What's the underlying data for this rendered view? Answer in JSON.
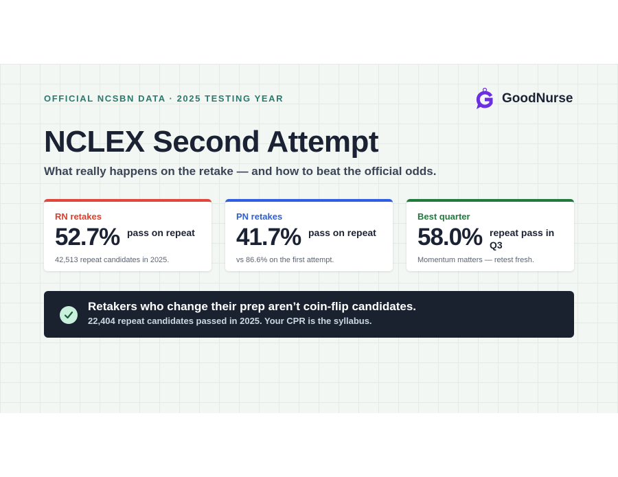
{
  "header": {
    "kicker": "OFFICIAL NCSBN DATA · 2025 TESTING YEAR",
    "brand": "GoodNurse"
  },
  "title": "NCLEX Second Attempt",
  "subtitle": "What really happens on the retake — and how to beat the official odds.",
  "cards": [
    {
      "label": "RN retakes",
      "value": "52.7%",
      "unit": "pass on repeat",
      "note": "42,513 repeat candidates in 2025."
    },
    {
      "label": "PN retakes",
      "value": "41.7%",
      "unit": "pass on repeat",
      "note": "vs 86.6% on the first attempt."
    },
    {
      "label": "Best quarter",
      "value": "58.0%",
      "unit": "repeat pass in Q3",
      "note": "Momentum matters — retest fresh."
    }
  ],
  "banner": {
    "title": "Retakers who change their prep aren’t coin-flip candidates.",
    "text": "22,404 repeat candidates passed in 2025. Your CPR is the syllabus."
  }
}
